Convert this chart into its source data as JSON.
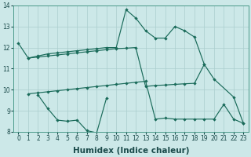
{
  "xlabel": "Humidex (Indice chaleur)",
  "xlim": [
    -0.5,
    23.5
  ],
  "ylim": [
    8,
    14
  ],
  "background_color": "#cce8e8",
  "grid_color": "#aacece",
  "line_color": "#1a6b5a",
  "line1_x": [
    0,
    1,
    2,
    3,
    4,
    5,
    6,
    7,
    8,
    9,
    10,
    11,
    12,
    13,
    14,
    15,
    16,
    17,
    18,
    19,
    20,
    22,
    23
  ],
  "line1_y": [
    12.2,
    11.5,
    11.6,
    11.7,
    11.75,
    11.8,
    11.85,
    11.9,
    11.95,
    12.0,
    12.0,
    13.8,
    13.4,
    12.8,
    12.45,
    12.45,
    13.0,
    12.8,
    12.5,
    11.2,
    10.5,
    9.65,
    8.4
  ],
  "line2_x": [
    1,
    2,
    3,
    4,
    5,
    6,
    7,
    8,
    9,
    10,
    11,
    12,
    13,
    14,
    15,
    16,
    17,
    18,
    19
  ],
  "line2_y": [
    11.5,
    11.55,
    11.6,
    11.65,
    11.7,
    11.75,
    11.8,
    11.85,
    11.9,
    11.95,
    11.97,
    12.0,
    10.15,
    10.2,
    10.22,
    10.25,
    10.28,
    10.3,
    11.2
  ],
  "line3_x": [
    1,
    2,
    3,
    4,
    5,
    6,
    7,
    8,
    9,
    10,
    11,
    12,
    13,
    14,
    15,
    16,
    17,
    18,
    19,
    20,
    21,
    22,
    23
  ],
  "line3_y": [
    9.8,
    9.85,
    9.9,
    9.95,
    10.0,
    10.05,
    10.1,
    10.15,
    10.2,
    10.25,
    10.3,
    10.35,
    10.4,
    8.6,
    8.65,
    8.6,
    8.6,
    8.6,
    8.6,
    8.6,
    9.3,
    8.6,
    8.4
  ],
  "line4_x": [
    2,
    3,
    4,
    5,
    6,
    7,
    8,
    9
  ],
  "line4_y": [
    9.75,
    9.1,
    8.55,
    8.5,
    8.55,
    8.05,
    7.95,
    9.6
  ],
  "xticks": [
    0,
    1,
    2,
    3,
    4,
    5,
    6,
    7,
    8,
    9,
    10,
    11,
    12,
    13,
    14,
    15,
    16,
    17,
    18,
    19,
    20,
    21,
    22,
    23
  ],
  "yticks": [
    8,
    9,
    10,
    11,
    12,
    13,
    14
  ],
  "tick_fontsize": 5.5,
  "xlabel_fontsize": 7.5
}
